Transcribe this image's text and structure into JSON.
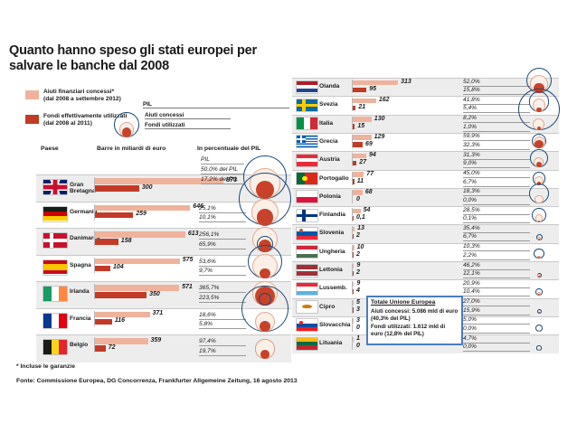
{
  "title": "Quanto hanno speso gli stati europei per\nsalvare le banche dal 2008",
  "legend": {
    "aiuti_label": "Aiuti finanziari concessi*",
    "aiuti_sub": "(dal 2008 a settembre 2012)",
    "fondi_label": "Fondi effettivamente utilizzati",
    "fondi_sub": "(dal 2008 al 2011)"
  },
  "diagram": {
    "pil": "PIL",
    "aiuti": "Aiuti concessi",
    "fondi": "Fondi utilizzati"
  },
  "table_headers": {
    "paese": "Paese",
    "barre": "Barre in miliardi di euro",
    "percentuale": "In percentuale del PIL"
  },
  "eu_box": {
    "title": "Totale Unione Europea",
    "line1": "Aiuti concessi: 5.086 mld di euro (40,3% del PIL)",
    "line2": "Fondi utilizzati: 1.612 mld di euro (12,8% del PIL)"
  },
  "footnote": "* Incluse le garanzie",
  "source": "Fonte: Commissione Europea, DG Concorrenza, Frankfurter Allgemeine Zeitung, 16 agosto 2013",
  "colors": {
    "aiuti_bar": "#efb29c",
    "fondi_bar": "#c23b27",
    "pil_circle_stroke": "#1b4a78",
    "aiuti_circle_stroke": "#e5a78e",
    "aiuti_circle_fill": "#faf0e8",
    "fondi_circle_fill": "#c8422a",
    "band_gray": "#ededed",
    "separator": "#c9c9c9",
    "box_border": "#4a7cc0"
  },
  "chart_data": {
    "type": "bar",
    "title": "Quanto hanno speso gli stati europei per salvare le banche dal 2008",
    "unit": "miliardi di euro",
    "series_names": [
      "Aiuti finanziari concessi (dal 2008 a settembre 2012)",
      "Fondi effettivamente utilizzati (dal 2008 al 2011)"
    ],
    "left_countries": [
      {
        "name": "Gran Bretagna",
        "flag": "gb",
        "aiuti": 873,
        "fondi": 300,
        "aiuti_label": "873",
        "fondi_label": "300",
        "aiuti_pct": "50,0% del PIL",
        "fondi_pct": "17,2% del PIL",
        "pil_caption": "PIL",
        "pil": 1746
      },
      {
        "name": "Germania",
        "flag": "de",
        "aiuti": 646,
        "fondi": 259,
        "aiuti_label": "646",
        "fondi_label": "259",
        "aiuti_pct": "25,1%",
        "fondi_pct": "10,1%",
        "pil": 2570
      },
      {
        "name": "Danimarca",
        "flag": "dk",
        "aiuti": 613,
        "fondi": 158,
        "aiuti_label": "613",
        "fondi_label": "158",
        "aiuti_pct": "256,1%",
        "fondi_pct": "65,9%",
        "pil": 239
      },
      {
        "name": "Spagna",
        "flag": "es",
        "aiuti": 575,
        "fondi": 104,
        "aiuti_label": "575",
        "fondi_label": "104",
        "aiuti_pct": "53,6%",
        "fondi_pct": "9,7%",
        "pil": 1072
      },
      {
        "name": "Irlanda",
        "flag": "ie",
        "aiuti": 571,
        "fondi": 350,
        "aiuti_label": "571",
        "fondi_label": "350",
        "aiuti_pct": "365,7%",
        "fondi_pct": "223,5%",
        "pil": 156
      },
      {
        "name": "Francia",
        "flag": "fr",
        "aiuti": 371,
        "fondi": 116,
        "aiuti_label": "371",
        "fondi_label": "116",
        "aiuti_pct": "18,6%",
        "fondi_pct": "5,8%",
        "pil": 1995
      },
      {
        "name": "Belgio",
        "flag": "be",
        "aiuti": 359,
        "fondi": 72,
        "aiuti_label": "359",
        "fondi_label": "72",
        "aiuti_pct": "97,4%",
        "fondi_pct": "19,7%",
        "pil": 368
      }
    ],
    "right_countries": [
      {
        "name": "Olanda",
        "flag": "nl",
        "aiuti": 313,
        "fondi": 95,
        "aiuti_label": "313",
        "fondi_label": "95",
        "aiuti_pct": "52,0%",
        "fondi_pct": "15,8%",
        "pil": 602
      },
      {
        "name": "Svezia",
        "flag": "se",
        "aiuti": 162,
        "fondi": 21,
        "aiuti_label": "162",
        "fondi_label": "21",
        "aiuti_pct": "41,8%",
        "fondi_pct": "5,4%",
        "pil": 388
      },
      {
        "name": "Italia",
        "flag": "it",
        "aiuti": 130,
        "fondi": 15,
        "aiuti_label": "130",
        "fondi_label": "15",
        "aiuti_pct": "8,2%",
        "fondi_pct": "1,0%",
        "pil": 1585
      },
      {
        "name": "Grecia",
        "flag": "gr",
        "aiuti": 129,
        "fondi": 69,
        "aiuti_label": "129",
        "fondi_label": "69",
        "aiuti_pct": "59,9%",
        "fondi_pct": "32,3%",
        "pil": 214
      },
      {
        "name": "Austria",
        "flag": "at",
        "aiuti": 94,
        "fondi": 27,
        "aiuti_label": "94",
        "fondi_label": "27",
        "aiuti_pct": "31,3%",
        "fondi_pct": "9,0%",
        "pil": 300
      },
      {
        "name": "Portogallo",
        "flag": "pt",
        "aiuti": 77,
        "fondi": 11,
        "aiuti_label": "77",
        "fondi_label": "11",
        "aiuti_pct": "45,0%",
        "fondi_pct": "6,7%",
        "pil": 169
      },
      {
        "name": "Polonia",
        "flag": "pl",
        "aiuti": 68,
        "fondi": 0,
        "aiuti_label": "68",
        "fondi_label": "0",
        "aiuti_pct": "18,3%",
        "fondi_pct": "0,0%",
        "pil": 372
      },
      {
        "name": "Finlandia",
        "flag": "fi",
        "aiuti": 54,
        "fondi": 0.1,
        "aiuti_label": "54",
        "fondi_label": "0,1",
        "aiuti_pct": "28,5%",
        "fondi_pct": "0,1%",
        "pil": 189
      },
      {
        "name": "Slovenia",
        "flag": "si",
        "aiuti": 13,
        "fondi": 2,
        "aiuti_label": "13",
        "fondi_label": "2",
        "aiuti_pct": "35,4%",
        "fondi_pct": "6,7%",
        "pil": 37
      },
      {
        "name": "Ungheria",
        "flag": "hu",
        "aiuti": 10,
        "fondi": 2,
        "aiuti_label": "10",
        "fondi_label": "2",
        "aiuti_pct": "10,3%",
        "fondi_pct": "2,2%",
        "pil": 96
      },
      {
        "name": "Lettonia",
        "flag": "lv",
        "aiuti": 9,
        "fondi": 2,
        "aiuti_label": "9",
        "fondi_label": "2",
        "aiuti_pct": "46,2%",
        "fondi_pct": "12,1%",
        "pil": 19
      },
      {
        "name": "Lussemb.",
        "flag": "lu",
        "aiuti": 9,
        "fondi": 4,
        "aiuti_label": "9",
        "fondi_label": "4",
        "aiuti_pct": "20,9%",
        "fondi_pct": "10,4%",
        "pil": 43
      },
      {
        "name": "Cipro",
        "flag": "cy",
        "aiuti": 5,
        "fondi": 3,
        "aiuti_label": "5",
        "fondi_label": "3",
        "aiuti_pct": "27,0%",
        "fondi_pct": "15,9%",
        "pil": 19
      },
      {
        "name": "Slovacchia",
        "flag": "sk",
        "aiuti": 3,
        "fondi": 0,
        "aiuti_label": "3",
        "fondi_label": "0",
        "aiuti_pct": "5,0%",
        "fondi_pct": "0,0%",
        "pil": 60
      },
      {
        "name": "Lituania",
        "flag": "lt",
        "aiuti": 1,
        "fondi": 0,
        "aiuti_label": "1",
        "fondi_label": "0",
        "aiuti_pct": "4,7%",
        "fondi_pct": "0,0%",
        "pil": 21
      }
    ]
  },
  "flags": {
    "gb": {
      "kind": "uk"
    },
    "de": {
      "kind": "h",
      "stripes": [
        [
          "#1a1a1a",
          33
        ],
        [
          "#cc0000",
          33
        ],
        [
          "#ffcc00",
          34
        ]
      ]
    },
    "dk": {
      "kind": "nordic",
      "bg": "#c8102e",
      "cross": "#ffffff"
    },
    "es": {
      "kind": "h",
      "stripes": [
        [
          "#c60b1e",
          28
        ],
        [
          "#ffc400",
          44
        ],
        [
          "#c60b1e",
          28
        ]
      ]
    },
    "ie": {
      "kind": "v",
      "stripes": [
        [
          "#169b62",
          33
        ],
        [
          "#ffffff",
          34
        ],
        [
          "#ff883e",
          33
        ]
      ]
    },
    "fr": {
      "kind": "v",
      "stripes": [
        [
          "#0a3a8f",
          33
        ],
        [
          "#ffffff",
          34
        ],
        [
          "#e1000f",
          33
        ]
      ]
    },
    "be": {
      "kind": "v",
      "stripes": [
        [
          "#1a1a1a",
          33
        ],
        [
          "#f7d618",
          34
        ],
        [
          "#e3262c",
          33
        ]
      ]
    },
    "nl": {
      "kind": "h",
      "stripes": [
        [
          "#ae1c28",
          33
        ],
        [
          "#ffffff",
          34
        ],
        [
          "#21468b",
          33
        ]
      ]
    },
    "se": {
      "kind": "nordic",
      "bg": "#0a6aa1",
      "cross": "#fecc00"
    },
    "it": {
      "kind": "v",
      "stripes": [
        [
          "#009246",
          33
        ],
        [
          "#ffffff",
          34
        ],
        [
          "#ce2b37",
          33
        ]
      ]
    },
    "gr": {
      "kind": "gr",
      "blue": "#0d5eaf"
    },
    "at": {
      "kind": "h",
      "stripes": [
        [
          "#ed2939",
          33
        ],
        [
          "#ffffff",
          34
        ],
        [
          "#ed2939",
          33
        ]
      ]
    },
    "pt": {
      "kind": "pt",
      "green": "#046a38",
      "red": "#da291c",
      "emblem": "#ffe900"
    },
    "pl": {
      "kind": "h",
      "stripes": [
        [
          "#ffffff",
          50
        ],
        [
          "#dc143c",
          50
        ]
      ]
    },
    "fi": {
      "kind": "nordic",
      "bg": "#ffffff",
      "cross": "#003580"
    },
    "si": {
      "kind": "h",
      "stripes": [
        [
          "#ffffff",
          33
        ],
        [
          "#0057a8",
          34
        ],
        [
          "#ed2939",
          33
        ]
      ],
      "emblem": "#b05a4a"
    },
    "hu": {
      "kind": "h",
      "stripes": [
        [
          "#ce2939",
          33
        ],
        [
          "#ffffff",
          34
        ],
        [
          "#477050",
          33
        ]
      ]
    },
    "lv": {
      "kind": "h",
      "stripes": [
        [
          "#9e3039",
          40
        ],
        [
          "#ffffff",
          20
        ],
        [
          "#9e3039",
          40
        ]
      ]
    },
    "lu": {
      "kind": "h",
      "stripes": [
        [
          "#ed2939",
          33
        ],
        [
          "#ffffff",
          34
        ],
        [
          "#55b7e0",
          33
        ]
      ]
    },
    "cy": {
      "kind": "cy",
      "bg": "#ffffff",
      "land": "#d57800"
    },
    "sk": {
      "kind": "h",
      "stripes": [
        [
          "#ffffff",
          33
        ],
        [
          "#0b4ea2",
          34
        ],
        [
          "#ee1c25",
          33
        ]
      ],
      "emblem": "#ee1c25"
    },
    "lt": {
      "kind": "h",
      "stripes": [
        [
          "#fdb913",
          33
        ],
        [
          "#006a44",
          34
        ],
        [
          "#c1272d",
          33
        ]
      ]
    }
  }
}
